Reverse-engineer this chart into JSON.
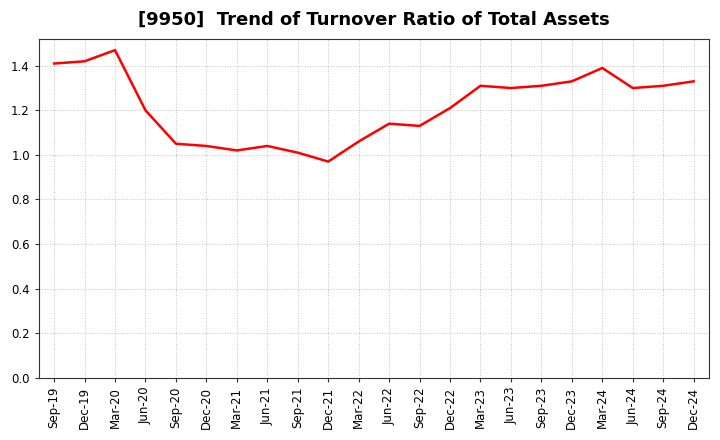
{
  "title": "[9950]  Trend of Turnover Ratio of Total Assets",
  "x_labels": [
    "Sep-19",
    "Dec-19",
    "Mar-20",
    "Jun-20",
    "Sep-20",
    "Dec-20",
    "Mar-21",
    "Jun-21",
    "Sep-21",
    "Dec-21",
    "Mar-22",
    "Jun-22",
    "Sep-22",
    "Dec-22",
    "Mar-23",
    "Jun-23",
    "Sep-23",
    "Dec-23",
    "Mar-24",
    "Jun-24",
    "Sep-24",
    "Dec-24"
  ],
  "y_values": [
    1.41,
    1.42,
    1.47,
    1.2,
    1.05,
    1.04,
    1.02,
    1.04,
    1.01,
    0.97,
    1.06,
    1.14,
    1.13,
    1.21,
    1.31,
    1.3,
    1.31,
    1.33,
    1.39,
    1.3,
    1.31,
    1.33
  ],
  "line_color": "#ff0000",
  "line_width": 1.8,
  "ylim": [
    0.0,
    1.52
  ],
  "yticks": [
    0.0,
    0.2,
    0.4,
    0.6,
    0.8,
    1.0,
    1.2,
    1.4
  ],
  "background_color": "#ffffff",
  "plot_bg_color": "#ffffff",
  "grid_color": "#999999",
  "title_fontsize": 13,
  "tick_fontsize": 8.5
}
